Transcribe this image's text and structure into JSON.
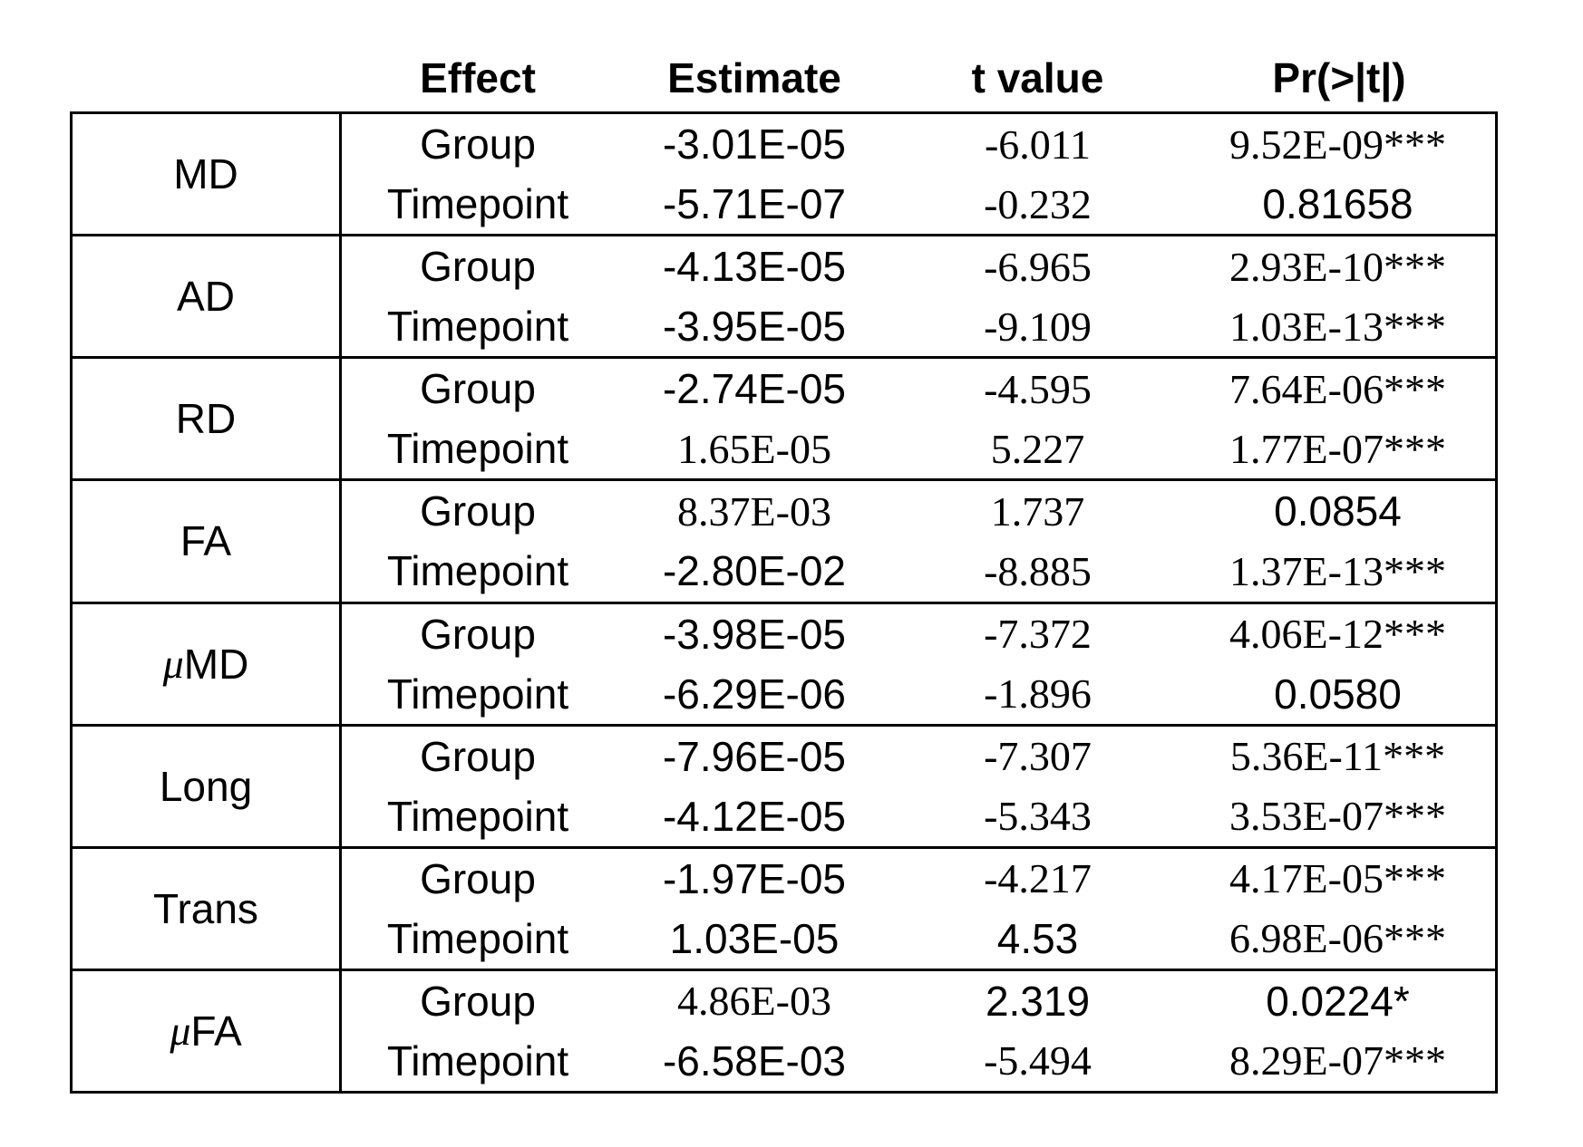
{
  "headers": [
    "Effect",
    "Estimate",
    "t value",
    "Pr(>|t|)"
  ],
  "colors": {
    "background": "#ffffff",
    "text": "#000000",
    "border": "#000000"
  },
  "table": {
    "groups": [
      {
        "metric": "MD",
        "rows": [
          {
            "effect": "Group",
            "estimate": "-3.01E-05",
            "t_value": "-6.011",
            "pr": "9.52E-09***"
          },
          {
            "effect": "Timepoint",
            "estimate": "-5.71E-07",
            "t_value": "-0.232",
            "pr": "0.81658"
          }
        ]
      },
      {
        "metric": "AD",
        "rows": [
          {
            "effect": "Group",
            "estimate": "-4.13E-05",
            "t_value": "-6.965",
            "pr": "2.93E-10***"
          },
          {
            "effect": "Timepoint",
            "estimate": "-3.95E-05",
            "t_value": "-9.109",
            "pr": "1.03E-13***"
          }
        ]
      },
      {
        "metric": "RD",
        "rows": [
          {
            "effect": "Group",
            "estimate": "-2.74E-05",
            "t_value": "-4.595",
            "pr": "7.64E-06***"
          },
          {
            "effect": "Timepoint",
            "estimate": "1.65E-05",
            "t_value": "5.227",
            "pr": "1.77E-07***"
          }
        ]
      },
      {
        "metric": "FA",
        "rows": [
          {
            "effect": "Group",
            "estimate": "8.37E-03",
            "t_value": "1.737",
            "pr": "0.0854"
          },
          {
            "effect": "Timepoint",
            "estimate": "-2.80E-02",
            "t_value": "-8.885",
            "pr": "1.37E-13***"
          }
        ]
      },
      {
        "metric": "μMD",
        "rows": [
          {
            "effect": "Group",
            "estimate": "-3.98E-05",
            "t_value": "-7.372",
            "pr": "4.06E-12***"
          },
          {
            "effect": "Timepoint",
            "estimate": "-6.29E-06",
            "t_value": "-1.896",
            "pr": "0.0580"
          }
        ]
      },
      {
        "metric": "Long",
        "rows": [
          {
            "effect": "Group",
            "estimate": "-7.96E-05",
            "t_value": "-7.307",
            "pr": "5.36E-11***"
          },
          {
            "effect": "Timepoint",
            "estimate": "-4.12E-05",
            "t_value": "-5.343",
            "pr": "3.53E-07***"
          }
        ]
      },
      {
        "metric": "Trans",
        "rows": [
          {
            "effect": "Group",
            "estimate": "-1.97E-05",
            "t_value": "-4.217",
            "pr": "4.17E-05***"
          },
          {
            "effect": "Timepoint",
            "estimate": "1.03E-05",
            "t_value": "4.53",
            "pr": "6.98E-06***"
          }
        ]
      },
      {
        "metric": "μFA",
        "rows": [
          {
            "effect": "Group",
            "estimate": "4.86E-03",
            "t_value": "2.319",
            "pr": "0.0224*"
          },
          {
            "effect": "Timepoint",
            "estimate": "-6.58E-03",
            "t_value": "-5.494",
            "pr": "8.29E-07***"
          }
        ]
      }
    ]
  }
}
